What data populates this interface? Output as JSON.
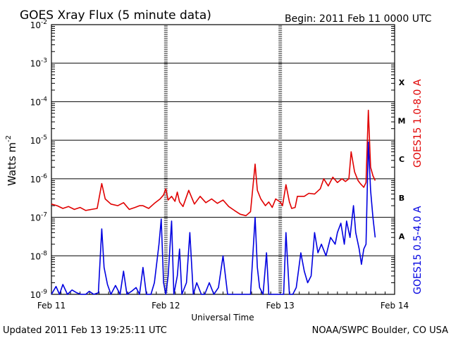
{
  "header": {
    "title": "GOES Xray Flux (5 minute data)",
    "begin": "Begin:  2011 Feb 11 0000 UTC"
  },
  "footer": {
    "updated": "Updated 2011 Feb 13 19:25:11 UTC",
    "credit": "NOAA/SWPC Boulder, CO USA"
  },
  "chart_data": {
    "type": "line",
    "title": "GOES Xray Flux (5 minute data)",
    "xlabel": "Universal Time",
    "ylabel_text": "Watts m",
    "ylabel_exp": "-2",
    "yscale": "log",
    "ylim": [
      1e-09,
      0.01
    ],
    "xlim_days": [
      0,
      3
    ],
    "x_ticks": [
      "Feb 11",
      "Feb 12",
      "Feb 13",
      "Feb 14"
    ],
    "y_ticks": [
      {
        "base": "10",
        "exp": "-2"
      },
      {
        "base": "10",
        "exp": "-3"
      },
      {
        "base": "10",
        "exp": "-4"
      },
      {
        "base": "10",
        "exp": "-5"
      },
      {
        "base": "10",
        "exp": "-6"
      },
      {
        "base": "10",
        "exp": "-7"
      },
      {
        "base": "10",
        "exp": "-8"
      },
      {
        "base": "10",
        "exp": "-9"
      }
    ],
    "flare_classes": [
      "X",
      "M",
      "C",
      "B",
      "A"
    ],
    "series": [
      {
        "name": "GOES15 1.0-8.0 A",
        "color": "#e00000",
        "points": [
          [
            0.0,
            2.2e-07
          ],
          [
            0.05,
            2e-07
          ],
          [
            0.1,
            1.7e-07
          ],
          [
            0.15,
            1.9e-07
          ],
          [
            0.2,
            1.6e-07
          ],
          [
            0.25,
            1.8e-07
          ],
          [
            0.3,
            1.5e-07
          ],
          [
            0.35,
            1.6e-07
          ],
          [
            0.4,
            1.7e-07
          ],
          [
            0.44,
            7.5e-07
          ],
          [
            0.47,
            3e-07
          ],
          [
            0.52,
            2.2e-07
          ],
          [
            0.58,
            2e-07
          ],
          [
            0.63,
            2.4e-07
          ],
          [
            0.68,
            1.6e-07
          ],
          [
            0.73,
            1.8e-07
          ],
          [
            0.77,
            2e-07
          ],
          [
            0.8,
            2e-07
          ],
          [
            0.85,
            1.7e-07
          ],
          [
            0.9,
            2.3e-07
          ],
          [
            0.95,
            3e-07
          ],
          [
            0.98,
            3.8e-07
          ],
          [
            1.0,
            5.5e-07
          ],
          [
            1.02,
            2.8e-07
          ],
          [
            1.05,
            3.5e-07
          ],
          [
            1.08,
            2.6e-07
          ],
          [
            1.1,
            4.5e-07
          ],
          [
            1.12,
            2.5e-07
          ],
          [
            1.15,
            1.9e-07
          ],
          [
            1.2,
            5e-07
          ],
          [
            1.25,
            2.2e-07
          ],
          [
            1.3,
            3.5e-07
          ],
          [
            1.35,
            2.4e-07
          ],
          [
            1.4,
            3e-07
          ],
          [
            1.45,
            2.3e-07
          ],
          [
            1.5,
            2.8e-07
          ],
          [
            1.55,
            1.9e-07
          ],
          [
            1.6,
            1.5e-07
          ],
          [
            1.65,
            1.2e-07
          ],
          [
            1.7,
            1.1e-07
          ],
          [
            1.74,
            1.4e-07
          ],
          [
            1.78,
            2.4e-06
          ],
          [
            1.8,
            5e-07
          ],
          [
            1.83,
            3e-07
          ],
          [
            1.87,
            2e-07
          ],
          [
            1.9,
            2.5e-07
          ],
          [
            1.93,
            1.8e-07
          ],
          [
            1.96,
            3e-07
          ],
          [
            2.0,
            2.5e-07
          ],
          [
            2.02,
            2e-07
          ],
          [
            2.05,
            7e-07
          ],
          [
            2.08,
            2.5e-07
          ],
          [
            2.1,
            1.7e-07
          ],
          [
            2.13,
            1.8e-07
          ],
          [
            2.15,
            3.5e-07
          ],
          [
            2.18,
            3.5e-07
          ],
          [
            2.21,
            3.5e-07
          ],
          [
            2.25,
            4.2e-07
          ],
          [
            2.3,
            4e-07
          ],
          [
            2.35,
            5.5e-07
          ],
          [
            2.38,
            1e-06
          ],
          [
            2.42,
            6.5e-07
          ],
          [
            2.46,
            1.1e-06
          ],
          [
            2.5,
            8e-07
          ],
          [
            2.54,
            1e-06
          ],
          [
            2.57,
            8.5e-07
          ],
          [
            2.6,
            1e-06
          ],
          [
            2.62,
            5e-06
          ],
          [
            2.65,
            1.5e-06
          ],
          [
            2.68,
            9e-07
          ],
          [
            2.7,
            7.5e-07
          ],
          [
            2.73,
            6e-07
          ],
          [
            2.75,
            8e-07
          ],
          [
            2.77,
            6e-05
          ],
          [
            2.79,
            2e-06
          ],
          [
            2.81,
            1.2e-06
          ],
          [
            2.83,
            9e-07
          ]
        ]
      },
      {
        "name": "GOES15 0.5-4.0 A",
        "color": "#0000e0",
        "points": [
          [
            0.0,
            1e-09
          ],
          [
            0.04,
            1.6e-09
          ],
          [
            0.07,
            1e-09
          ],
          [
            0.1,
            1.8e-09
          ],
          [
            0.14,
            1e-09
          ],
          [
            0.18,
            1.3e-09
          ],
          [
            0.22,
            1.1e-09
          ],
          [
            0.26,
            1e-09
          ],
          [
            0.3,
            1e-09
          ],
          [
            0.33,
            1.2e-09
          ],
          [
            0.37,
            1e-09
          ],
          [
            0.41,
            1.1e-09
          ],
          [
            0.44,
            5e-08
          ],
          [
            0.46,
            5e-09
          ],
          [
            0.49,
            1.8e-09
          ],
          [
            0.52,
            1e-09
          ],
          [
            0.56,
            1.7e-09
          ],
          [
            0.6,
            1e-09
          ],
          [
            0.63,
            4e-09
          ],
          [
            0.66,
            1e-09
          ],
          [
            0.7,
            1.2e-09
          ],
          [
            0.74,
            1.5e-09
          ],
          [
            0.77,
            1e-09
          ],
          [
            0.8,
            5e-09
          ],
          [
            0.83,
            1e-09
          ],
          [
            0.87,
            1e-09
          ],
          [
            0.9,
            2e-09
          ],
          [
            0.94,
            2e-08
          ],
          [
            0.96,
            9e-08
          ],
          [
            0.98,
            2e-09
          ],
          [
            1.0,
            1e-09
          ],
          [
            1.02,
            3e-09
          ],
          [
            1.05,
            8e-08
          ],
          [
            1.07,
            1e-09
          ],
          [
            1.1,
            3e-09
          ],
          [
            1.12,
            1.5e-08
          ],
          [
            1.14,
            1e-09
          ],
          [
            1.18,
            2e-09
          ],
          [
            1.21,
            4e-08
          ],
          [
            1.24,
            1e-09
          ],
          [
            1.27,
            2e-09
          ],
          [
            1.31,
            1e-09
          ],
          [
            1.34,
            1e-09
          ],
          [
            1.38,
            2e-09
          ],
          [
            1.42,
            1e-09
          ],
          [
            1.46,
            1.5e-09
          ],
          [
            1.5,
            1e-08
          ],
          [
            1.54,
            1e-09
          ],
          [
            1.58,
            1e-09
          ],
          [
            1.62,
            1e-09
          ],
          [
            1.66,
            1e-09
          ],
          [
            1.7,
            1e-09
          ],
          [
            1.74,
            1e-09
          ],
          [
            1.78,
            1e-07
          ],
          [
            1.8,
            5e-09
          ],
          [
            1.82,
            1.5e-09
          ],
          [
            1.85,
            1e-09
          ],
          [
            1.88,
            1.2e-08
          ],
          [
            1.9,
            1e-09
          ],
          [
            1.93,
            1e-09
          ],
          [
            1.96,
            1e-09
          ],
          [
            2.0,
            1e-09
          ],
          [
            2.03,
            1e-09
          ],
          [
            2.05,
            4e-08
          ],
          [
            2.08,
            1e-09
          ],
          [
            2.11,
            1e-09
          ],
          [
            2.14,
            1.5e-09
          ],
          [
            2.18,
            1.2e-08
          ],
          [
            2.21,
            4e-09
          ],
          [
            2.24,
            2e-09
          ],
          [
            2.27,
            3e-09
          ],
          [
            2.3,
            4e-08
          ],
          [
            2.33,
            1.2e-08
          ],
          [
            2.36,
            2e-08
          ],
          [
            2.4,
            1e-08
          ],
          [
            2.44,
            3e-08
          ],
          [
            2.48,
            2e-08
          ],
          [
            2.5,
            4e-08
          ],
          [
            2.53,
            7e-08
          ],
          [
            2.56,
            2e-08
          ],
          [
            2.58,
            8e-08
          ],
          [
            2.61,
            3e-08
          ],
          [
            2.64,
            2e-07
          ],
          [
            2.66,
            4e-08
          ],
          [
            2.69,
            1.5e-08
          ],
          [
            2.71,
            6e-09
          ],
          [
            2.73,
            1.5e-08
          ],
          [
            2.75,
            2e-08
          ],
          [
            2.77,
            9e-06
          ],
          [
            2.79,
            5e-07
          ],
          [
            2.81,
            1e-07
          ],
          [
            2.83,
            3e-08
          ]
        ]
      }
    ]
  }
}
